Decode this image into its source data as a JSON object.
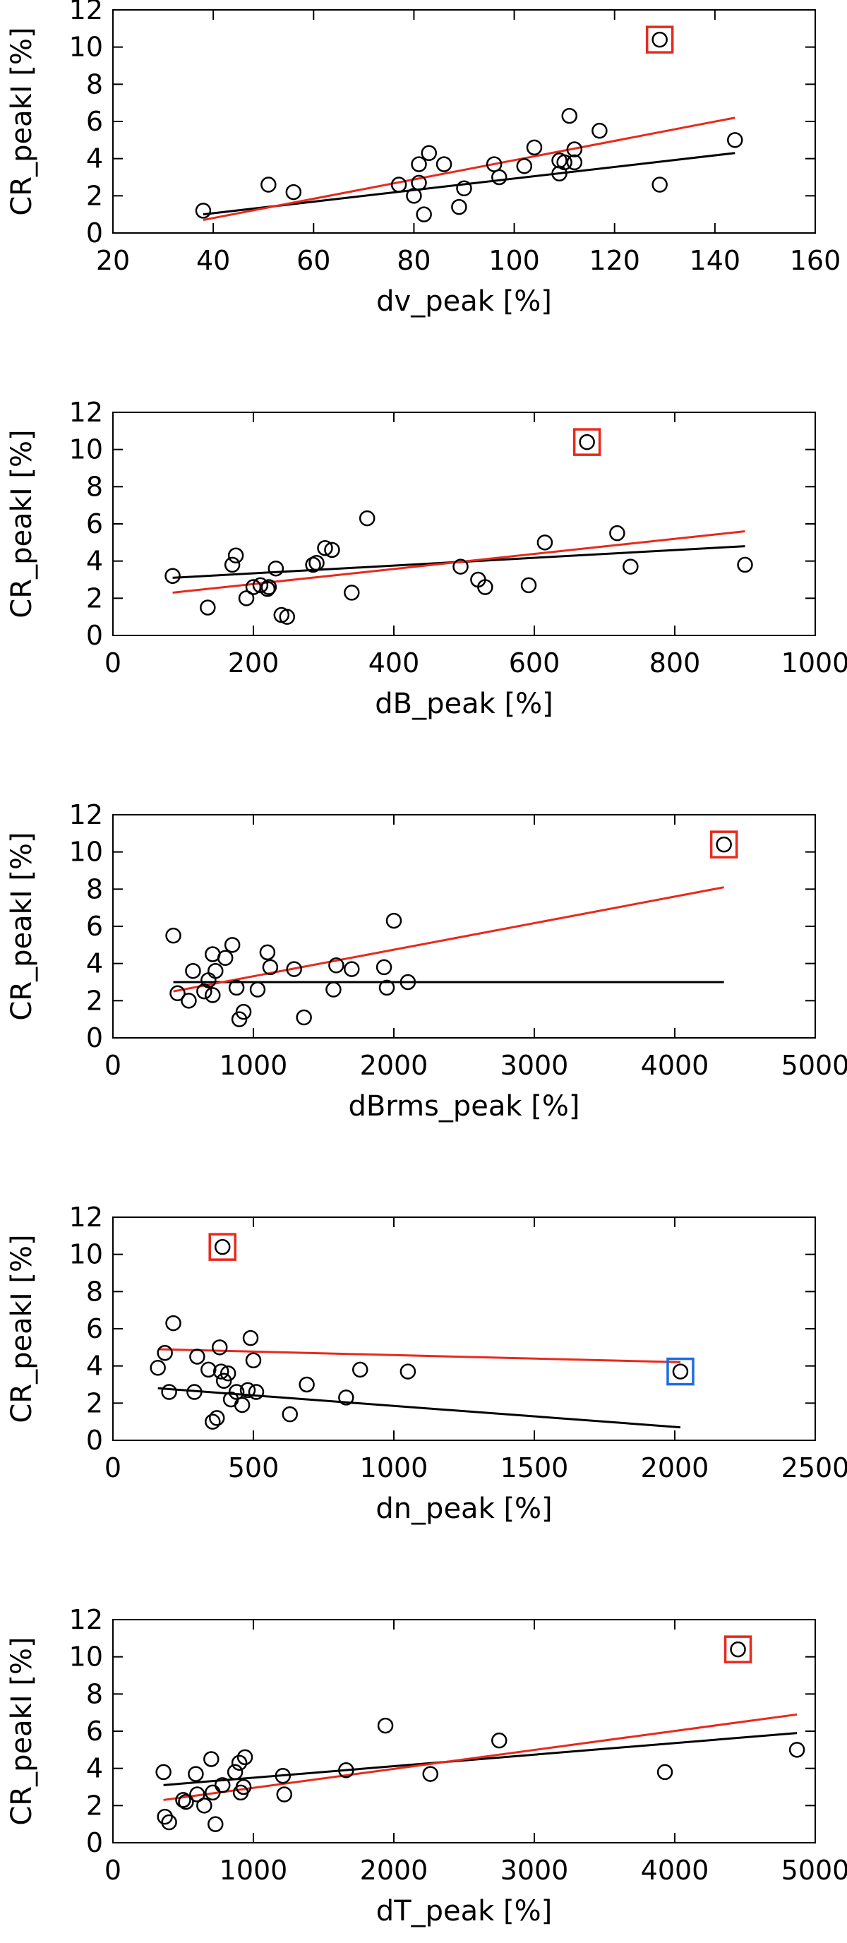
{
  "chart_data": [
    {
      "type": "scatter",
      "title": "",
      "xlabel": "dv_peak [%]",
      "ylabel": "CR_peakI [%]",
      "xlim": [
        20,
        160
      ],
      "ylim": [
        0,
        12
      ],
      "xticks": [
        20,
        40,
        60,
        80,
        100,
        120,
        140,
        160
      ],
      "yticks": [
        0,
        2,
        4,
        6,
        8,
        10,
        12
      ],
      "points": [
        {
          "x": 38,
          "y": 1.2
        },
        {
          "x": 51,
          "y": 2.6
        },
        {
          "x": 56,
          "y": 2.2
        },
        {
          "x": 77,
          "y": 2.6
        },
        {
          "x": 80,
          "y": 2.0
        },
        {
          "x": 81,
          "y": 3.7
        },
        {
          "x": 81,
          "y": 2.7
        },
        {
          "x": 82,
          "y": 1.0
        },
        {
          "x": 83,
          "y": 4.3
        },
        {
          "x": 86,
          "y": 3.7
        },
        {
          "x": 89,
          "y": 1.4
        },
        {
          "x": 90,
          "y": 2.4
        },
        {
          "x": 96,
          "y": 3.7
        },
        {
          "x": 97,
          "y": 3.0
        },
        {
          "x": 102,
          "y": 3.6
        },
        {
          "x": 104,
          "y": 4.6
        },
        {
          "x": 109,
          "y": 3.2
        },
        {
          "x": 109,
          "y": 3.9
        },
        {
          "x": 110,
          "y": 3.8
        },
        {
          "x": 111,
          "y": 6.3
        },
        {
          "x": 112,
          "y": 3.8
        },
        {
          "x": 112,
          "y": 4.5
        },
        {
          "x": 117,
          "y": 5.5
        },
        {
          "x": 129,
          "y": 2.6
        },
        {
          "x": 144,
          "y": 5.0
        },
        {
          "x": 129,
          "y": 10.4
        }
      ],
      "black_fit": {
        "x": [
          38,
          144
        ],
        "y": [
          1.0,
          4.3
        ]
      },
      "red_fit": {
        "x": [
          38,
          144
        ],
        "y": [
          0.7,
          6.2
        ]
      },
      "highlights": [
        {
          "x": 129,
          "y": 10.4,
          "color": "#e8291c"
        }
      ]
    },
    {
      "type": "scatter",
      "title": "",
      "xlabel": "dB_peak [%]",
      "ylabel": "CR_peakI [%]",
      "xlim": [
        0,
        1000
      ],
      "ylim": [
        0,
        12
      ],
      "xticks": [
        0,
        200,
        400,
        600,
        800,
        1000
      ],
      "yticks": [
        0,
        2,
        4,
        6,
        8,
        10,
        12
      ],
      "points": [
        {
          "x": 85,
          "y": 3.2
        },
        {
          "x": 135,
          "y": 1.5
        },
        {
          "x": 170,
          "y": 3.8
        },
        {
          "x": 175,
          "y": 4.3
        },
        {
          "x": 190,
          "y": 2.0
        },
        {
          "x": 200,
          "y": 2.6
        },
        {
          "x": 210,
          "y": 2.7
        },
        {
          "x": 220,
          "y": 2.5
        },
        {
          "x": 222,
          "y": 2.6
        },
        {
          "x": 232,
          "y": 3.6
        },
        {
          "x": 240,
          "y": 1.1
        },
        {
          "x": 248,
          "y": 1.0
        },
        {
          "x": 285,
          "y": 3.8
        },
        {
          "x": 290,
          "y": 3.9
        },
        {
          "x": 302,
          "y": 4.7
        },
        {
          "x": 312,
          "y": 4.6
        },
        {
          "x": 340,
          "y": 2.3
        },
        {
          "x": 362,
          "y": 6.3
        },
        {
          "x": 495,
          "y": 3.7
        },
        {
          "x": 520,
          "y": 3.0
        },
        {
          "x": 530,
          "y": 2.6
        },
        {
          "x": 592,
          "y": 2.7
        },
        {
          "x": 615,
          "y": 5.0
        },
        {
          "x": 718,
          "y": 5.5
        },
        {
          "x": 737,
          "y": 3.7
        },
        {
          "x": 900,
          "y": 3.8
        },
        {
          "x": 675,
          "y": 10.4
        }
      ],
      "black_fit": {
        "x": [
          85,
          900
        ],
        "y": [
          3.1,
          4.8
        ]
      },
      "red_fit": {
        "x": [
          85,
          900
        ],
        "y": [
          2.3,
          5.6
        ]
      },
      "highlights": [
        {
          "x": 675,
          "y": 10.4,
          "color": "#e8291c"
        }
      ]
    },
    {
      "type": "scatter",
      "title": "",
      "xlabel": "dBrms_peak [%]",
      "ylabel": "CR_peakI [%]",
      "xlim": [
        0,
        5000
      ],
      "ylim": [
        0,
        12
      ],
      "xticks": [
        0,
        1000,
        2000,
        3000,
        4000,
        5000
      ],
      "yticks": [
        0,
        2,
        4,
        6,
        8,
        10,
        12
      ],
      "points": [
        {
          "x": 430,
          "y": 5.5
        },
        {
          "x": 460,
          "y": 2.4
        },
        {
          "x": 540,
          "y": 2.0
        },
        {
          "x": 570,
          "y": 3.6
        },
        {
          "x": 650,
          "y": 2.5
        },
        {
          "x": 680,
          "y": 3.1
        },
        {
          "x": 710,
          "y": 4.5
        },
        {
          "x": 710,
          "y": 2.3
        },
        {
          "x": 730,
          "y": 3.6
        },
        {
          "x": 800,
          "y": 4.3
        },
        {
          "x": 850,
          "y": 5.0
        },
        {
          "x": 880,
          "y": 2.7
        },
        {
          "x": 900,
          "y": 1.0
        },
        {
          "x": 930,
          "y": 1.4
        },
        {
          "x": 1030,
          "y": 2.6
        },
        {
          "x": 1100,
          "y": 4.6
        },
        {
          "x": 1120,
          "y": 3.8
        },
        {
          "x": 1290,
          "y": 3.7
        },
        {
          "x": 1360,
          "y": 1.1
        },
        {
          "x": 1570,
          "y": 2.6
        },
        {
          "x": 1590,
          "y": 3.9
        },
        {
          "x": 1700,
          "y": 3.7
        },
        {
          "x": 1930,
          "y": 3.8
        },
        {
          "x": 1950,
          "y": 2.7
        },
        {
          "x": 2000,
          "y": 6.3
        },
        {
          "x": 2100,
          "y": 3.0
        },
        {
          "x": 4350,
          "y": 10.4
        }
      ],
      "black_fit": {
        "x": [
          430,
          4350
        ],
        "y": [
          3.0,
          3.0
        ]
      },
      "red_fit": {
        "x": [
          430,
          4350
        ],
        "y": [
          2.5,
          8.1
        ]
      },
      "highlights": [
        {
          "x": 4350,
          "y": 10.4,
          "color": "#e8291c"
        }
      ]
    },
    {
      "type": "scatter",
      "title": "",
      "xlabel": "dn_peak [%]",
      "ylabel": "CR_peakI [%]",
      "xlim": [
        0,
        2500
      ],
      "ylim": [
        0,
        12
      ],
      "xticks": [
        0,
        500,
        1000,
        1500,
        2000,
        2500
      ],
      "yticks": [
        0,
        2,
        4,
        6,
        8,
        10,
        12
      ],
      "points": [
        {
          "x": 160,
          "y": 3.9
        },
        {
          "x": 185,
          "y": 4.7
        },
        {
          "x": 200,
          "y": 2.6
        },
        {
          "x": 215,
          "y": 6.3
        },
        {
          "x": 290,
          "y": 2.6
        },
        {
          "x": 300,
          "y": 4.5
        },
        {
          "x": 340,
          "y": 3.8
        },
        {
          "x": 355,
          "y": 1.0
        },
        {
          "x": 370,
          "y": 1.2
        },
        {
          "x": 380,
          "y": 5.0
        },
        {
          "x": 385,
          "y": 3.7
        },
        {
          "x": 395,
          "y": 3.2
        },
        {
          "x": 410,
          "y": 3.6
        },
        {
          "x": 420,
          "y": 2.2
        },
        {
          "x": 440,
          "y": 2.6
        },
        {
          "x": 460,
          "y": 1.9
        },
        {
          "x": 480,
          "y": 2.7
        },
        {
          "x": 490,
          "y": 5.5
        },
        {
          "x": 500,
          "y": 4.3
        },
        {
          "x": 510,
          "y": 2.6
        },
        {
          "x": 630,
          "y": 1.4
        },
        {
          "x": 690,
          "y": 3.0
        },
        {
          "x": 830,
          "y": 2.3
        },
        {
          "x": 880,
          "y": 3.8
        },
        {
          "x": 1050,
          "y": 3.7
        },
        {
          "x": 2020,
          "y": 3.7
        },
        {
          "x": 390,
          "y": 10.4
        }
      ],
      "black_fit": {
        "x": [
          160,
          2020
        ],
        "y": [
          2.8,
          0.7
        ]
      },
      "red_fit": {
        "x": [
          160,
          2020
        ],
        "y": [
          4.9,
          4.2
        ]
      },
      "highlights": [
        {
          "x": 390,
          "y": 10.4,
          "color": "#e8291c"
        },
        {
          "x": 2020,
          "y": 3.7,
          "color": "#1c6be8"
        }
      ]
    },
    {
      "type": "scatter",
      "title": "",
      "xlabel": "dT_peak [%]",
      "ylabel": "CR_peakI [%]",
      "xlim": [
        0,
        5000
      ],
      "ylim": [
        0,
        12
      ],
      "xticks": [
        0,
        1000,
        2000,
        3000,
        4000,
        5000
      ],
      "yticks": [
        0,
        2,
        4,
        6,
        8,
        10,
        12
      ],
      "points": [
        {
          "x": 360,
          "y": 3.8
        },
        {
          "x": 370,
          "y": 1.4
        },
        {
          "x": 400,
          "y": 1.1
        },
        {
          "x": 500,
          "y": 2.3
        },
        {
          "x": 520,
          "y": 2.2
        },
        {
          "x": 590,
          "y": 3.7
        },
        {
          "x": 600,
          "y": 2.6
        },
        {
          "x": 650,
          "y": 2.0
        },
        {
          "x": 700,
          "y": 4.5
        },
        {
          "x": 710,
          "y": 2.7
        },
        {
          "x": 730,
          "y": 1.0
        },
        {
          "x": 780,
          "y": 3.1
        },
        {
          "x": 870,
          "y": 3.8
        },
        {
          "x": 900,
          "y": 4.3
        },
        {
          "x": 910,
          "y": 2.7
        },
        {
          "x": 930,
          "y": 3.0
        },
        {
          "x": 940,
          "y": 4.6
        },
        {
          "x": 1210,
          "y": 3.6
        },
        {
          "x": 1220,
          "y": 2.6
        },
        {
          "x": 1660,
          "y": 3.9
        },
        {
          "x": 1940,
          "y": 6.3
        },
        {
          "x": 2260,
          "y": 3.7
        },
        {
          "x": 2750,
          "y": 5.5
        },
        {
          "x": 3930,
          "y": 3.8
        },
        {
          "x": 4870,
          "y": 5.0
        },
        {
          "x": 4450,
          "y": 10.4
        }
      ],
      "black_fit": {
        "x": [
          360,
          4870
        ],
        "y": [
          3.1,
          5.9
        ]
      },
      "red_fit": {
        "x": [
          360,
          4870
        ],
        "y": [
          2.3,
          6.9
        ]
      },
      "highlights": [
        {
          "x": 4450,
          "y": 10.4,
          "color": "#e8291c"
        }
      ]
    }
  ],
  "colors": {
    "axis": "#000000",
    "black_fit": "#000000",
    "red_fit": "#e8291c",
    "blue_highlight": "#1c6be8"
  }
}
